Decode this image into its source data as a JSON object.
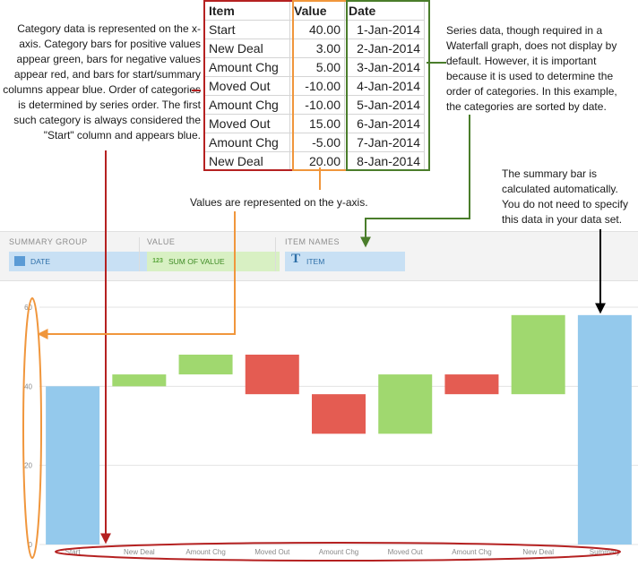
{
  "notes": {
    "left": "Category data is represented on the x-axis. Category bars for positive values appear green, bars for negative values appear red, and bars for start/summary columns appear blue. Order of categories is determined by series order. The first such category is always considered the \"Start\" column and appears blue.",
    "right": "Series data, though required in a Waterfall graph, does not display by default. However, it is important because it is used to determine the order of categories. In this example, the categories are sorted by date.",
    "values": "Values are represented on the y-axis.",
    "summary": "The summary bar is calculated automatically. You do not need to specify this data in your data set."
  },
  "table": {
    "headers": [
      "Item",
      "Value",
      "Date"
    ],
    "rows": [
      [
        "Start",
        "40.00",
        "1-Jan-2014"
      ],
      [
        "New Deal",
        "3.00",
        "2-Jan-2014"
      ],
      [
        "Amount Chg",
        "5.00",
        "3-Jan-2014"
      ],
      [
        "Moved Out",
        "-10.00",
        "4-Jan-2014"
      ],
      [
        "Amount Chg",
        "-10.00",
        "5-Jan-2014"
      ],
      [
        "Moved Out",
        "15.00",
        "6-Jan-2014"
      ],
      [
        "Amount Chg",
        "-5.00",
        "7-Jan-2014"
      ],
      [
        "New Deal",
        "20.00",
        "8-Jan-2014"
      ]
    ]
  },
  "wells": {
    "summary_group": {
      "label": "SUMMARY GROUP",
      "field": "DATE",
      "icon": "calendar-icon"
    },
    "value": {
      "label": "VALUE",
      "field": "SUM OF VALUE",
      "icon_text": "123",
      "icon": "numeric-icon"
    },
    "item_names": {
      "label": "ITEM NAMES",
      "field": "ITEM",
      "icon_text": "T",
      "icon": "text-type-icon"
    }
  },
  "colors": {
    "start_summary": "#94c9ec",
    "positive": "#a0d86f",
    "negative": "#e45c52",
    "highlight_red": "#b52121",
    "highlight_orange": "#f0963c",
    "highlight_green": "#4a7d2b",
    "arrow_black": "#000000"
  },
  "chart_data": {
    "type": "bar",
    "subtype": "waterfall",
    "categories": [
      "Start",
      "New Deal",
      "Amount Chg",
      "Moved Out",
      "Amount Chg",
      "Moved Out",
      "Amount Chg",
      "New Deal",
      "Summary"
    ],
    "steps": [
      {
        "category": "Start",
        "base": 0,
        "end": 40,
        "kind": "start"
      },
      {
        "category": "New Deal",
        "base": 40,
        "end": 43,
        "kind": "positive"
      },
      {
        "category": "Amount Chg",
        "base": 43,
        "end": 48,
        "kind": "positive"
      },
      {
        "category": "Moved Out",
        "base": 48,
        "end": 38,
        "kind": "negative"
      },
      {
        "category": "Amount Chg",
        "base": 38,
        "end": 28,
        "kind": "negative"
      },
      {
        "category": "Moved Out",
        "base": 28,
        "end": 43,
        "kind": "positive"
      },
      {
        "category": "Amount Chg",
        "base": 43,
        "end": 38,
        "kind": "negative"
      },
      {
        "category": "New Deal",
        "base": 38,
        "end": 58,
        "kind": "positive"
      },
      {
        "category": "Summary",
        "base": 0,
        "end": 58,
        "kind": "summary"
      }
    ],
    "ylim": [
      0,
      60
    ],
    "yticks": [
      0,
      20,
      40,
      60
    ],
    "grid": true,
    "legend": "none"
  }
}
